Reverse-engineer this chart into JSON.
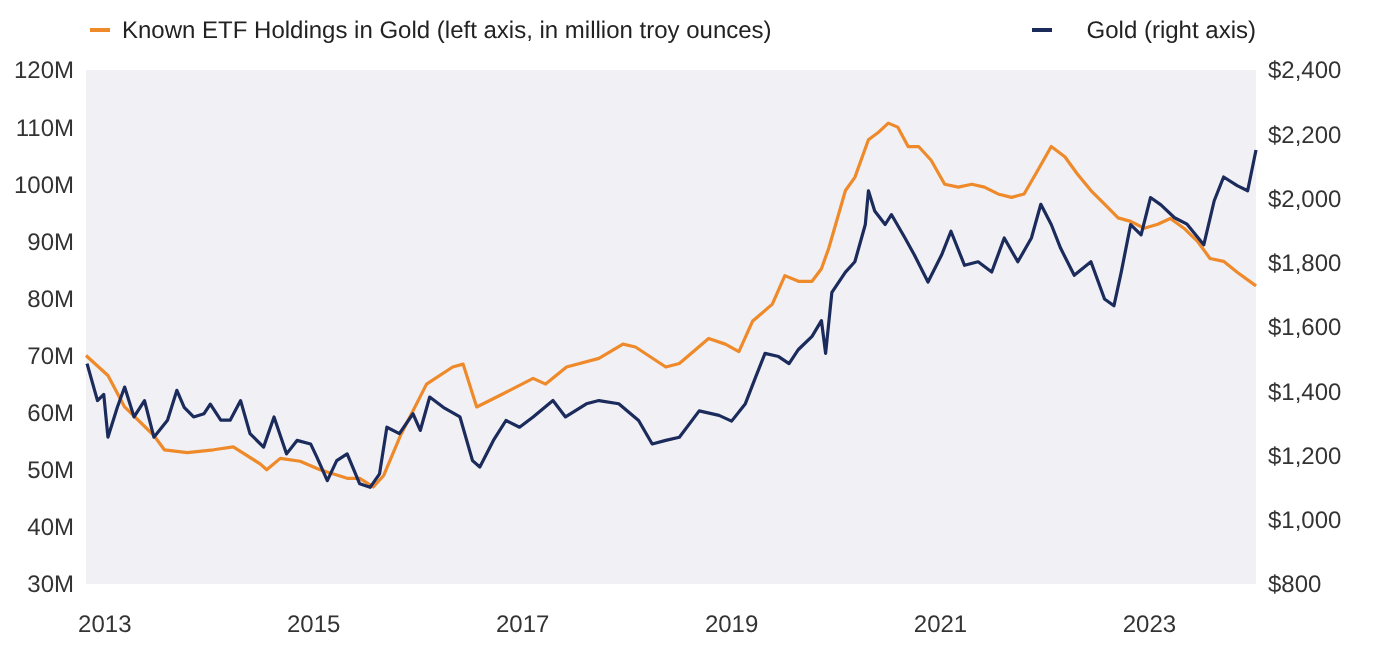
{
  "chart_data": {
    "type": "line",
    "legend": "top",
    "grid": false,
    "xlim": [
      2012.82,
      2024.02
    ],
    "xticks": [
      2013,
      2015,
      2017,
      2019,
      2021,
      2023
    ],
    "ylim": [
      30,
      120
    ],
    "yticks": [
      {
        "value": 30,
        "label": "30M"
      },
      {
        "value": 40,
        "label": "40M"
      },
      {
        "value": 50,
        "label": "50M"
      },
      {
        "value": 60,
        "label": "60M"
      },
      {
        "value": 70,
        "label": "70M"
      },
      {
        "value": 80,
        "label": "80M"
      },
      {
        "value": 90,
        "label": "90M"
      },
      {
        "value": 100,
        "label": "100M"
      },
      {
        "value": 110,
        "label": "110M"
      },
      {
        "value": 120,
        "label": "120M"
      }
    ],
    "y2lim": [
      800,
      2400
    ],
    "y2ticks": [
      {
        "value": 800,
        "label": "$800"
      },
      {
        "value": 1000,
        "label": "$1,000"
      },
      {
        "value": 1200,
        "label": "$1,200"
      },
      {
        "value": 1400,
        "label": "$1,400"
      },
      {
        "value": 1600,
        "label": "$1,600"
      },
      {
        "value": 1800,
        "label": "$1,800"
      },
      {
        "value": 2000,
        "label": "$2,000"
      },
      {
        "value": 2200,
        "label": "$2,200"
      },
      {
        "value": 2400,
        "label": "$2,400"
      }
    ],
    "series": [
      {
        "name": "Known ETF Holdings in Gold (left axis, in million troy ounces)",
        "color": "#ef8a2a",
        "axis": "y",
        "x": [
          2012.82,
          2013.03,
          2013.19,
          2013.47,
          2013.57,
          2013.79,
          2014.04,
          2014.23,
          2014.49,
          2014.55,
          2014.68,
          2014.87,
          2015.06,
          2015.32,
          2015.44,
          2015.57,
          2015.67,
          2015.83,
          2016.08,
          2016.33,
          2016.43,
          2016.56,
          2016.78,
          2017.1,
          2017.22,
          2017.42,
          2017.73,
          2017.96,
          2018.08,
          2018.37,
          2018.5,
          2018.78,
          2018.94,
          2019.07,
          2019.2,
          2019.39,
          2019.51,
          2019.64,
          2019.77,
          2019.86,
          2019.93,
          2020.09,
          2020.18,
          2020.31,
          2020.4,
          2020.5,
          2020.59,
          2020.69,
          2020.79,
          2020.91,
          2021.04,
          2021.17,
          2021.3,
          2021.42,
          2021.55,
          2021.68,
          2021.8,
          2021.93,
          2022.06,
          2022.19,
          2022.31,
          2022.44,
          2022.57,
          2022.7,
          2022.82,
          2022.95,
          2023.08,
          2023.2,
          2023.33,
          2023.46,
          2023.58,
          2023.71,
          2023.84,
          2024.02
        ],
        "values": [
          70,
          66.5,
          61,
          56,
          53.5,
          53,
          53.5,
          54,
          51,
          50,
          52,
          51.5,
          50,
          48.5,
          48.5,
          47,
          49,
          56,
          65,
          68,
          68.5,
          61,
          63,
          66,
          65,
          68,
          69.5,
          72,
          71.5,
          68,
          68.6,
          73,
          72,
          70.7,
          76,
          79,
          84,
          83,
          83,
          85.2,
          88.8,
          98.9,
          101.2,
          107.8,
          109,
          110.7,
          110,
          106.6,
          106.6,
          104.2,
          100,
          99.5,
          100,
          99.5,
          98.3,
          97.7,
          98.3,
          102.4,
          106.6,
          104.8,
          101.8,
          98.9,
          96.5,
          94.1,
          93.5,
          92.3,
          93,
          94,
          92.3,
          90,
          87,
          86.5,
          84.6,
          82.2
        ]
      },
      {
        "name": "Gold (right axis)",
        "color": "#1b2b5b",
        "axis": "y2",
        "x": [
          2012.83,
          2012.93,
          2012.99,
          2013.03,
          2013.12,
          2013.19,
          2013.28,
          2013.38,
          2013.47,
          2013.6,
          2013.69,
          2013.76,
          2013.85,
          2013.95,
          2014.01,
          2014.11,
          2014.2,
          2014.3,
          2014.39,
          2014.52,
          2014.62,
          2014.74,
          2014.84,
          2014.97,
          2015.03,
          2015.13,
          2015.22,
          2015.32,
          2015.44,
          2015.54,
          2015.63,
          2015.7,
          2015.82,
          2015.95,
          2016.02,
          2016.11,
          2016.24,
          2016.4,
          2016.52,
          2016.59,
          2016.72,
          2016.84,
          2016.97,
          2017.1,
          2017.29,
          2017.41,
          2017.61,
          2017.73,
          2017.92,
          2018.11,
          2018.24,
          2018.37,
          2018.5,
          2018.69,
          2018.88,
          2019,
          2019.13,
          2019.23,
          2019.32,
          2019.45,
          2019.55,
          2019.64,
          2019.77,
          2019.86,
          2019.9,
          2019.96,
          2020.09,
          2020.18,
          2020.28,
          2020.31,
          2020.37,
          2020.47,
          2020.53,
          2020.66,
          2020.75,
          2020.88,
          2021.01,
          2021.1,
          2021.23,
          2021.36,
          2021.49,
          2021.61,
          2021.74,
          2021.87,
          2021.96,
          2022.06,
          2022.15,
          2022.28,
          2022.44,
          2022.57,
          2022.66,
          2022.73,
          2022.82,
          2022.92,
          2023.01,
          2023.11,
          2023.24,
          2023.36,
          2023.52,
          2023.62,
          2023.71,
          2023.84,
          2023.94,
          2024.02
        ],
        "values": [
          1486,
          1371,
          1390,
          1257,
          1350,
          1413,
          1320,
          1371,
          1257,
          1310,
          1403,
          1350,
          1320,
          1330,
          1360,
          1310,
          1310,
          1371,
          1268,
          1226,
          1320,
          1205,
          1247,
          1236,
          1195,
          1122,
          1184,
          1205,
          1112,
          1101,
          1143,
          1288,
          1268,
          1330,
          1278,
          1382,
          1350,
          1320,
          1184,
          1164,
          1247,
          1309,
          1288,
          1320,
          1371,
          1320,
          1361,
          1371,
          1361,
          1309,
          1236,
          1247,
          1257,
          1339,
          1325,
          1307,
          1360,
          1444,
          1518,
          1508,
          1486,
          1530,
          1571,
          1620,
          1518,
          1708,
          1771,
          1803,
          1919,
          2024,
          1961,
          1919,
          1950,
          1877,
          1824,
          1740,
          1824,
          1898,
          1792,
          1803,
          1771,
          1877,
          1803,
          1877,
          1982,
          1919,
          1845,
          1761,
          1803,
          1687,
          1666,
          1771,
          1919,
          1887,
          2003,
          1980,
          1940,
          1920,
          1856,
          1993,
          2067,
          2040,
          2024,
          2151
        ]
      }
    ]
  }
}
